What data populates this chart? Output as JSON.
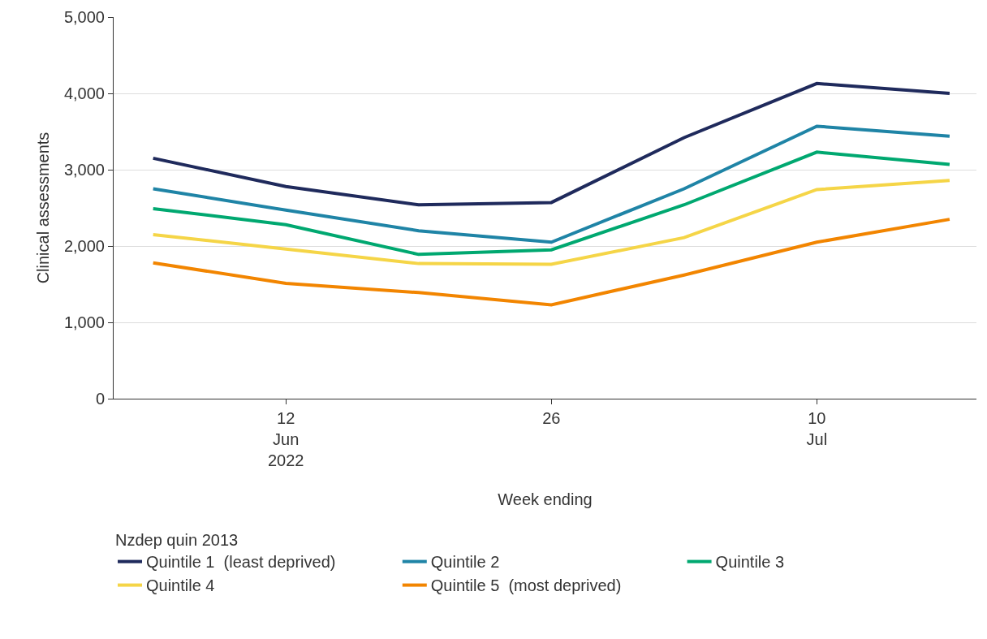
{
  "chart_data": {
    "type": "line",
    "x": [
      "2022-06-05",
      "2022-06-12",
      "2022-06-19",
      "2022-06-26",
      "2022-07-03",
      "2022-07-10",
      "2022-07-17"
    ],
    "series": [
      {
        "name": "Quintile 1  (least deprived)",
        "color": "#1f2a5c",
        "values": [
          3150,
          2780,
          2540,
          2570,
          3420,
          4130,
          4000
        ]
      },
      {
        "name": "Quintile 2",
        "color": "#1f84a6",
        "values": [
          2750,
          2470,
          2200,
          2050,
          2750,
          3570,
          3440
        ]
      },
      {
        "name": "Quintile 3",
        "color": "#00a870",
        "values": [
          2490,
          2280,
          1890,
          1950,
          2540,
          3230,
          3070
        ]
      },
      {
        "name": "Quintile 4",
        "color": "#f5d547",
        "values": [
          2150,
          1960,
          1770,
          1760,
          2110,
          2740,
          2860
        ]
      },
      {
        "name": "Quintile 5  (most deprived)",
        "color": "#f28500",
        "values": [
          1780,
          1510,
          1390,
          1230,
          1620,
          2050,
          2350
        ]
      }
    ],
    "xlabel": "Week ending",
    "ylabel": "Clinical assessments",
    "legend_title": "Nzdep quin 2013",
    "xlim": [
      "2022-06-02T22:00",
      "2022-07-18T10:00"
    ],
    "xticks": [
      {
        "value": "2022-06-12",
        "label": "12\nJun\n2022"
      },
      {
        "value": "2022-06-26",
        "label": "26"
      },
      {
        "value": "2022-07-10",
        "label": "10\nJul"
      }
    ],
    "ylim": [
      0,
      5000
    ],
    "yticks": [
      {
        "value": 0,
        "label": "0"
      },
      {
        "value": 1000,
        "label": "1,000"
      },
      {
        "value": 2000,
        "label": "2,000"
      },
      {
        "value": 3000,
        "label": "3,000"
      },
      {
        "value": 4000,
        "label": "4,000"
      },
      {
        "value": 5000,
        "label": "5,000"
      }
    ],
    "grid": "y",
    "legend": "bottom",
    "marker": "none",
    "line_style": "solid"
  }
}
